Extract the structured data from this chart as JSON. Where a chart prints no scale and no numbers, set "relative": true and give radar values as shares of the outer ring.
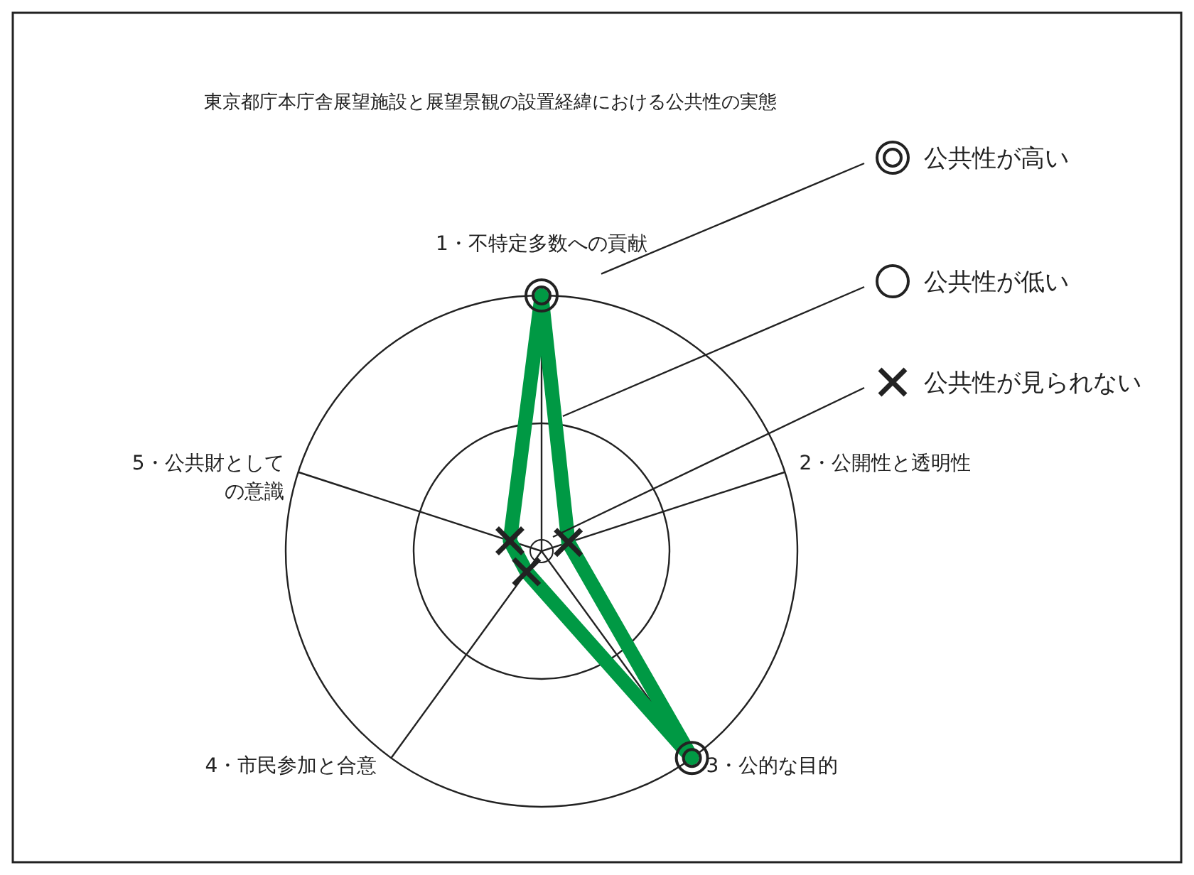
{
  "chart_data": {
    "type": "radar",
    "title": "東京都庁本庁舎展望施設と展望景観の設置経緯における公共性の実態",
    "categories": [
      "1・不特定多数への貢献",
      "2・公開性と透明性",
      "3・公的な目的",
      "4・市民参加と合意",
      "5・公共財としての意識"
    ],
    "relative": true,
    "grid": true,
    "series": [
      {
        "color": "#009944",
        "values": [
          1,
          0.11,
          1,
          0.1,
          0.13
        ]
      }
    ],
    "annotations": [
      "公共性が高い",
      "公共性が低い",
      "公共性が見られない"
    ]
  }
}
